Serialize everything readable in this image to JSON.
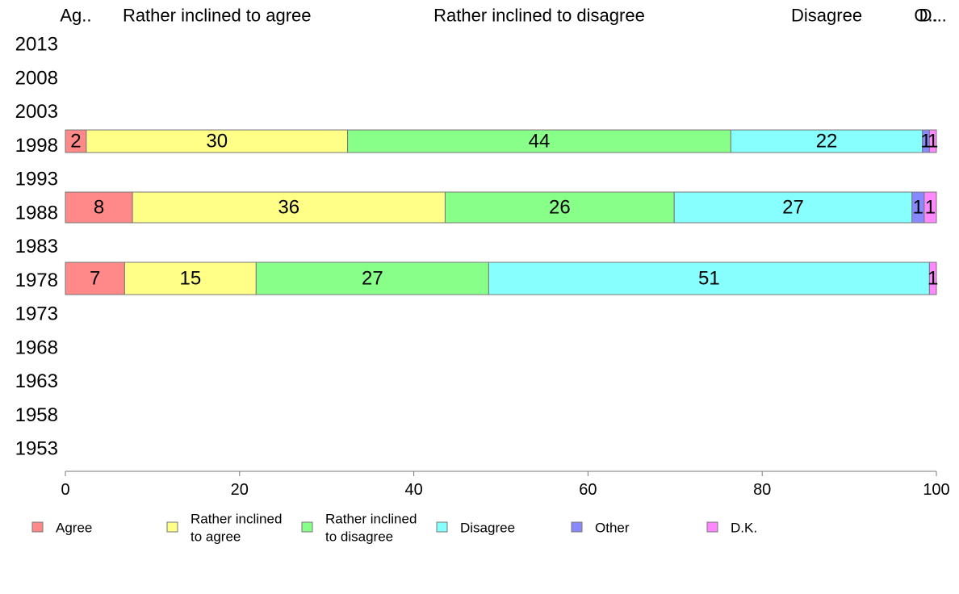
{
  "chart_data": {
    "type": "bar",
    "orientation": "horizontal",
    "stacked": true,
    "years": [
      "2013",
      "2008",
      "2003",
      "1998",
      "1993",
      "1988",
      "1983",
      "1978",
      "1973",
      "1968",
      "1963",
      "1958",
      "1953"
    ],
    "series": [
      {
        "name": "Agree",
        "color": "#ff8888"
      },
      {
        "name": "Rather inclined to agree",
        "color": "#ffff88"
      },
      {
        "name": "Rather inclined to disagree",
        "color": "#88ff88"
      },
      {
        "name": "Disagree",
        "color": "#88ffff"
      },
      {
        "name": "Other",
        "color": "#8888ff"
      },
      {
        "name": "D.K.",
        "color": "#ff88ff"
      }
    ],
    "bars": [
      {
        "year": "1998",
        "values": [
          2.4,
          30.0,
          44.0,
          22.0,
          0.8,
          0.8
        ],
        "labels": [
          "2",
          "30",
          "44",
          "22",
          "1",
          "1"
        ]
      },
      {
        "year": "1988",
        "values": [
          7.7,
          35.9,
          26.3,
          27.3,
          1.4,
          1.4
        ],
        "labels": [
          "8",
          "36",
          "26",
          "27",
          "1",
          "1"
        ]
      },
      {
        "year": "1978",
        "values": [
          6.8,
          15.1,
          26.7,
          50.6,
          0.0,
          0.8
        ],
        "labels": [
          "7",
          "15",
          "27",
          "51",
          "",
          "1"
        ]
      }
    ],
    "top_labels": [
      "Ag..",
      "Rather inclined to agree",
      "Rather inclined to disagree",
      "Disagree",
      "O..",
      "D..."
    ],
    "xlim": [
      0,
      100
    ],
    "x_ticks": [
      "0",
      "20",
      "40",
      "60",
      "80",
      "100"
    ],
    "legend": {
      "placement": "bottom",
      "items": [
        {
          "lines": [
            "Agree"
          ],
          "color": "#ff8888"
        },
        {
          "lines": [
            "Rather inclined",
            "to agree"
          ],
          "color": "#ffff88"
        },
        {
          "lines": [
            "Rather inclined",
            "to disagree"
          ],
          "color": "#88ff88"
        },
        {
          "lines": [
            "Disagree"
          ],
          "color": "#88ffff"
        },
        {
          "lines": [
            "Other"
          ],
          "color": "#8888ff"
        },
        {
          "lines": [
            "D.K."
          ],
          "color": "#ff88ff"
        }
      ]
    }
  }
}
